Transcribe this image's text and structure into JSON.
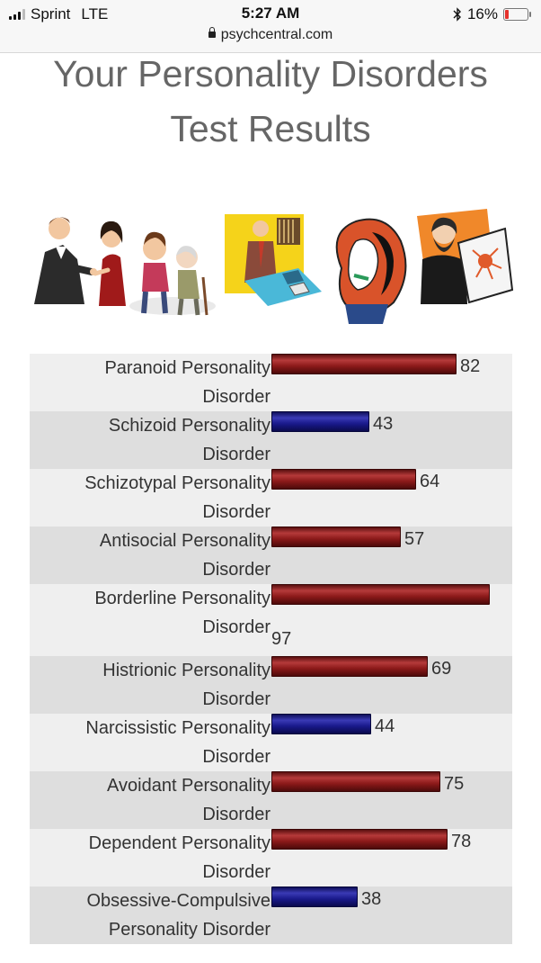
{
  "status_bar": {
    "carrier": "Sprint",
    "network": "LTE",
    "time": "5:27 AM",
    "battery": "16%",
    "battery_level": 0.16,
    "url": "psychcentral.com"
  },
  "page": {
    "title_line1": "Your Personality Disorders",
    "title_line2": "Test Results"
  },
  "colors": {
    "high": "#8c1a1a",
    "low": "#1a1a8c"
  },
  "results": [
    {
      "line1": "Paranoid Personality",
      "line2": "Disorder",
      "score": "82",
      "value": 82,
      "color": "red"
    },
    {
      "line1": "Schizoid Personality",
      "line2": "Disorder",
      "score": "43",
      "value": 43,
      "color": "blue"
    },
    {
      "line1": "Schizotypal Personality",
      "line2": "Disorder",
      "score": "64",
      "value": 64,
      "color": "red"
    },
    {
      "line1": "Antisocial Personality",
      "line2": "Disorder",
      "score": "57",
      "value": 57,
      "color": "red"
    },
    {
      "line1": "Borderline Personality",
      "line2": "Disorder",
      "score": "97",
      "value": 97,
      "color": "red"
    },
    {
      "line1": "Histrionic Personality",
      "line2": "Disorder",
      "score": "69",
      "value": 69,
      "color": "red"
    },
    {
      "line1": "Narcissistic Personality",
      "line2": "Disorder",
      "score": "44",
      "value": 44,
      "color": "blue"
    },
    {
      "line1": "Avoidant Personality",
      "line2": "Disorder",
      "score": "75",
      "value": 75,
      "color": "red"
    },
    {
      "line1": "Dependent Personality",
      "line2": "Disorder",
      "score": "78",
      "value": 78,
      "color": "red"
    },
    {
      "line1": "Obsessive-Compulsive",
      "line2": "Personality Disorder",
      "score": "38",
      "value": 38,
      "color": "blue"
    }
  ]
}
